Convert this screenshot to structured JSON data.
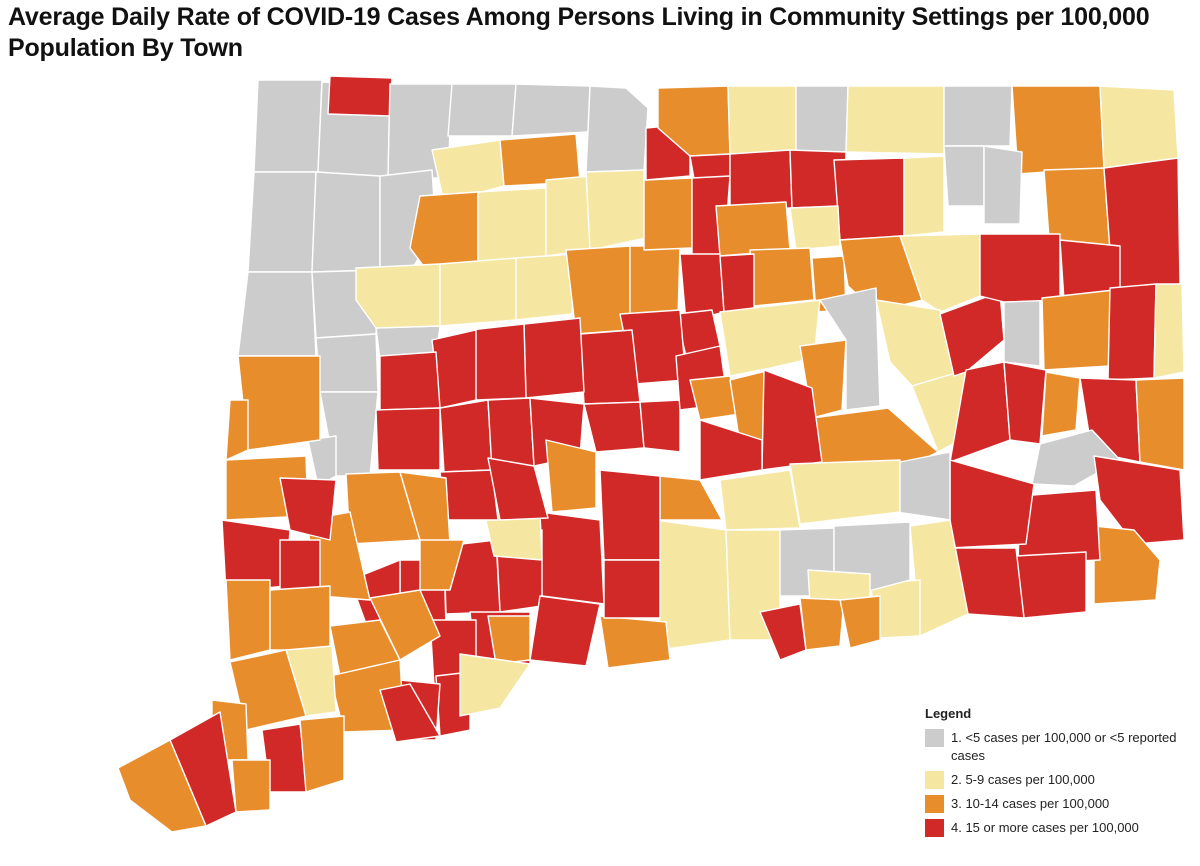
{
  "title": "Average Daily Rate of COVID-19 Cases Among Persons Living in Community Settings per 100,000 Population By Town",
  "legend": {
    "title": "Legend",
    "items": [
      {
        "label": "1. <5 cases per 100,000 or <5 reported cases",
        "color": "#cccccc"
      },
      {
        "label": "2. 5-9 cases per 100,000",
        "color": "#f5e6a1"
      },
      {
        "label": "3. 10-14 cases per 100,000",
        "color": "#e88d2c"
      },
      {
        "label": "4. 15 or more cases per 100,000",
        "color": "#d12927"
      }
    ]
  },
  "colors": {
    "background": "#ffffff",
    "border": "#ffffff"
  }
}
